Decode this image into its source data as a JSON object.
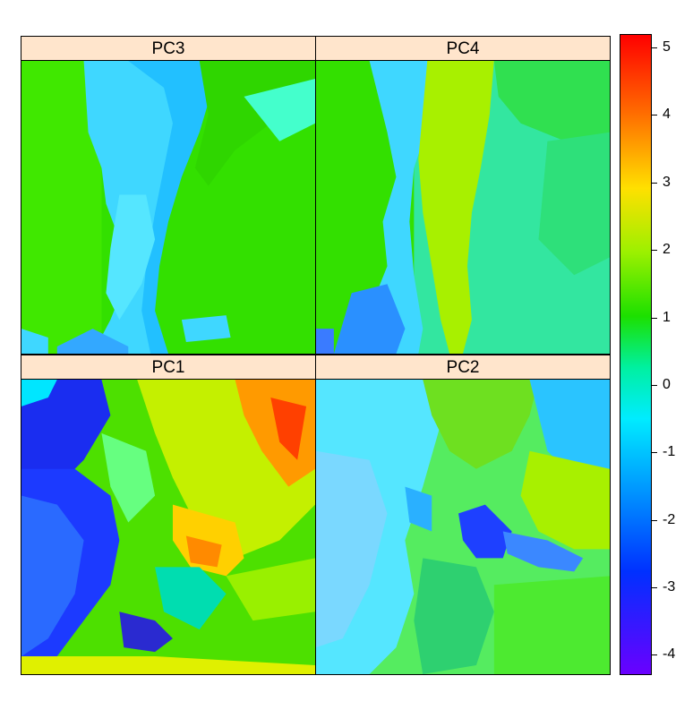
{
  "panels": [
    {
      "label": "PC3"
    },
    {
      "label": "PC4"
    },
    {
      "label": "PC1"
    },
    {
      "label": "PC2"
    }
  ],
  "colorkey": {
    "min": -4.3,
    "max": 5.2,
    "ticks": [
      {
        "value": 5,
        "label": "5"
      },
      {
        "value": 4,
        "label": "4"
      },
      {
        "value": 3,
        "label": "3"
      },
      {
        "value": 2,
        "label": "2"
      },
      {
        "value": 1,
        "label": "1"
      },
      {
        "value": 0,
        "label": "0"
      },
      {
        "value": -1,
        "label": "-1"
      },
      {
        "value": -2,
        "label": "-2"
      },
      {
        "value": -3,
        "label": "-3"
      },
      {
        "value": -4,
        "label": "-4"
      }
    ],
    "palette": [
      "#ff0000",
      "#ff8000",
      "#ffff00",
      "#80ff00",
      "#00e000",
      "#00ffcc",
      "#00c8ff",
      "#0064ff",
      "#0000ff",
      "#6000ff"
    ]
  }
}
